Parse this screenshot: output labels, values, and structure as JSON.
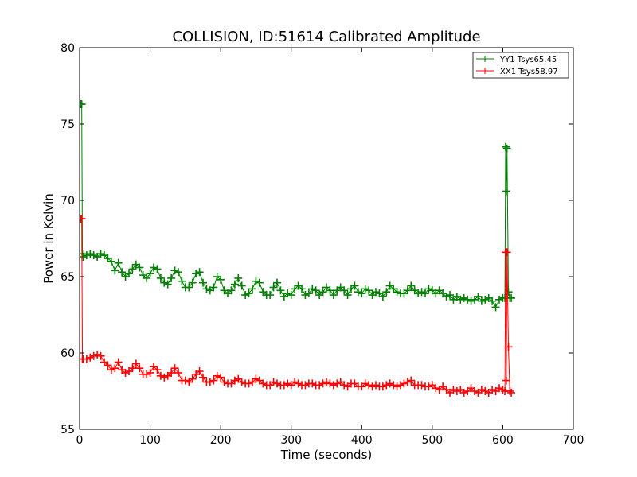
{
  "chart_data": {
    "type": "line",
    "title": "COLLISION, ID:51614 Calibrated Amplitude",
    "xlabel": "Time (seconds)",
    "ylabel": "Power in Kelvin",
    "xlim": [
      0,
      700
    ],
    "ylim": [
      55,
      80
    ],
    "xticks": [
      "0",
      "100",
      "200",
      "300",
      "400",
      "500",
      "600",
      "700"
    ],
    "yticks": [
      "55",
      "60",
      "65",
      "70",
      "75",
      "80"
    ],
    "grid": false,
    "legend_position": "top-right",
    "series": [
      {
        "name": "YY1 Tsys65.45",
        "color": "#008000",
        "marker": "plus",
        "x": [
          2,
          3,
          4,
          5,
          10,
          15,
          20,
          25,
          30,
          35,
          40,
          45,
          50,
          55,
          60,
          65,
          70,
          75,
          80,
          85,
          90,
          95,
          100,
          105,
          110,
          115,
          120,
          125,
          130,
          135,
          140,
          145,
          150,
          155,
          160,
          165,
          170,
          175,
          180,
          185,
          190,
          195,
          200,
          205,
          210,
          215,
          220,
          225,
          230,
          235,
          240,
          245,
          250,
          255,
          260,
          265,
          270,
          275,
          280,
          285,
          290,
          295,
          300,
          305,
          310,
          315,
          320,
          325,
          330,
          335,
          340,
          345,
          350,
          355,
          360,
          365,
          370,
          375,
          380,
          385,
          390,
          395,
          400,
          405,
          410,
          415,
          420,
          425,
          430,
          435,
          440,
          445,
          450,
          455,
          460,
          465,
          470,
          475,
          480,
          485,
          490,
          495,
          500,
          505,
          510,
          515,
          520,
          525,
          530,
          535,
          540,
          545,
          550,
          555,
          560,
          565,
          570,
          575,
          580,
          585,
          590,
          595,
          600,
          603,
          604,
          605,
          606,
          608,
          610,
          612
        ],
        "values": [
          76.3,
          76.3,
          66.5,
          66.3,
          66.4,
          66.5,
          66.4,
          66.3,
          66.5,
          66.4,
          66.2,
          66.0,
          65.4,
          65.9,
          65.3,
          65.0,
          65.2,
          65.5,
          65.8,
          65.6,
          65.1,
          64.9,
          65.2,
          65.6,
          65.5,
          64.9,
          64.6,
          64.5,
          64.9,
          65.4,
          65.3,
          64.7,
          64.3,
          64.3,
          64.6,
          65.2,
          65.3,
          64.6,
          64.2,
          64.1,
          64.3,
          65.0,
          64.8,
          64.1,
          63.9,
          64.1,
          64.5,
          64.9,
          64.4,
          63.8,
          63.9,
          64.2,
          64.7,
          64.6,
          64.0,
          63.8,
          63.8,
          64.3,
          64.6,
          64.1,
          63.7,
          63.9,
          63.8,
          64.2,
          64.4,
          64.2,
          63.8,
          63.9,
          64.2,
          64.1,
          63.8,
          64.0,
          64.3,
          64.1,
          63.8,
          64.1,
          64.3,
          64.1,
          63.8,
          64.2,
          64.4,
          64.0,
          63.9,
          64.2,
          64.1,
          63.8,
          64.0,
          63.9,
          63.7,
          64.0,
          64.4,
          64.2,
          64.0,
          63.9,
          63.9,
          64.1,
          64.4,
          64.1,
          63.9,
          64.0,
          63.9,
          64.2,
          64.1,
          63.9,
          64.1,
          63.9,
          63.7,
          63.8,
          63.5,
          63.7,
          63.5,
          63.6,
          63.5,
          63.4,
          63.5,
          63.7,
          63.4,
          63.5,
          63.6,
          63.4,
          63.0,
          63.5,
          63.6,
          63.6,
          73.5,
          70.6,
          73.4,
          64.0,
          63.6,
          63.6
        ]
      },
      {
        "name": "XX1 Tsys58.97",
        "color": "#ff0000",
        "marker": "plus",
        "x": [
          2,
          3,
          4,
          5,
          10,
          15,
          20,
          25,
          30,
          35,
          40,
          45,
          50,
          55,
          60,
          65,
          70,
          75,
          80,
          85,
          90,
          95,
          100,
          105,
          110,
          115,
          120,
          125,
          130,
          135,
          140,
          145,
          150,
          155,
          160,
          165,
          170,
          175,
          180,
          185,
          190,
          195,
          200,
          205,
          210,
          215,
          220,
          225,
          230,
          235,
          240,
          245,
          250,
          255,
          260,
          265,
          270,
          275,
          280,
          285,
          290,
          295,
          300,
          305,
          310,
          315,
          320,
          325,
          330,
          335,
          340,
          345,
          350,
          355,
          360,
          365,
          370,
          375,
          380,
          385,
          390,
          395,
          400,
          405,
          410,
          415,
          420,
          425,
          430,
          435,
          440,
          445,
          450,
          455,
          460,
          465,
          470,
          475,
          480,
          485,
          490,
          495,
          500,
          505,
          510,
          515,
          520,
          525,
          530,
          535,
          540,
          545,
          550,
          555,
          560,
          565,
          570,
          575,
          580,
          585,
          590,
          595,
          600,
          603,
          604,
          605,
          606,
          608,
          610,
          612
        ],
        "values": [
          68.8,
          68.8,
          59.6,
          59.6,
          59.6,
          59.7,
          59.8,
          59.9,
          59.8,
          59.4,
          59.2,
          58.9,
          59.0,
          59.4,
          58.9,
          58.7,
          58.8,
          59.0,
          59.3,
          59.0,
          58.6,
          58.6,
          58.7,
          59.1,
          58.9,
          58.5,
          58.4,
          58.5,
          58.7,
          59.0,
          58.7,
          58.2,
          58.2,
          58.1,
          58.3,
          58.6,
          58.8,
          58.4,
          58.1,
          58.1,
          58.2,
          58.5,
          58.4,
          58.1,
          58.0,
          58.0,
          58.2,
          58.3,
          58.1,
          58.0,
          58.0,
          58.1,
          58.3,
          58.2,
          58.0,
          57.9,
          57.9,
          58.1,
          58.0,
          57.9,
          57.9,
          58.0,
          57.9,
          58.1,
          58.0,
          57.9,
          57.9,
          58.0,
          58.0,
          57.9,
          57.9,
          58.0,
          58.1,
          58.0,
          57.9,
          58.0,
          58.1,
          57.9,
          57.8,
          58.0,
          58.0,
          57.8,
          57.8,
          58.0,
          57.9,
          57.8,
          57.9,
          57.8,
          57.8,
          57.9,
          58.0,
          57.9,
          57.8,
          57.9,
          58.0,
          58.1,
          58.2,
          57.9,
          57.9,
          57.9,
          57.8,
          57.8,
          57.9,
          57.7,
          57.6,
          57.8,
          57.6,
          57.4,
          57.6,
          57.5,
          57.6,
          57.4,
          57.5,
          57.7,
          57.5,
          57.4,
          57.6,
          57.5,
          57.4,
          57.6,
          57.5,
          57.7,
          57.6,
          57.5,
          66.6,
          58.2,
          66.6,
          60.4,
          57.5,
          57.4
        ]
      }
    ]
  }
}
